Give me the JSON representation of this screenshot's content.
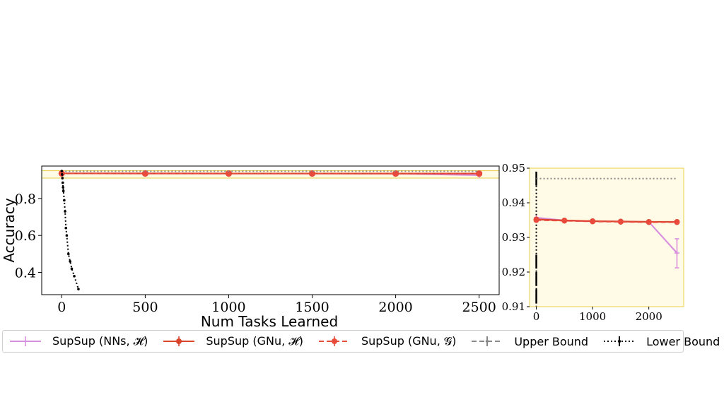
{
  "chart_data": [
    {
      "type": "line",
      "panel": "main",
      "xlabel": "Num Tasks Learned",
      "ylabel": "Accuracy",
      "xlim": [
        -120,
        2620
      ],
      "ylim": [
        0.28,
        0.975
      ],
      "xticks": [
        0,
        500,
        1000,
        1500,
        2000,
        2500
      ],
      "yticks": [
        0.4,
        0.6,
        0.8
      ],
      "ytick_labels": [
        "0.4",
        "0.6",
        "0.8"
      ],
      "highlight_band": [
        0.91,
        0.95
      ],
      "series": [
        {
          "name": "SupSup (NNs, $\\mathcal{H}$)",
          "color": "#d98fe0",
          "style": "solid",
          "marker": "plus",
          "x": [
            0,
            500,
            1000,
            1500,
            2000,
            2500
          ],
          "y": [
            0.9357,
            0.9349,
            0.9347,
            0.9346,
            0.9345,
            0.9255
          ]
        },
        {
          "name": "SupSup (GNu, $\\mathcal{H}$)",
          "color": "#d9442b",
          "style": "solid",
          "marker": "circle",
          "x": [
            0,
            500,
            1000,
            1500,
            2000,
            2500
          ],
          "y": [
            0.9352,
            0.9349,
            0.9347,
            0.9346,
            0.9345,
            0.9345
          ]
        },
        {
          "name": "SupSup (GNu, $\\mathcal{G}$)",
          "color": "#e84a3c",
          "style": "dashed",
          "marker": "circle",
          "x": [
            0,
            500,
            1000,
            1500,
            2000,
            2500
          ],
          "y": [
            0.935,
            0.9348,
            0.9346,
            0.9345,
            0.9344,
            0.9344
          ]
        },
        {
          "name": "Upper Bound",
          "color": "#888888",
          "style": "dotted",
          "marker": "none",
          "x": [
            0,
            2500
          ],
          "y": [
            0.947,
            0.947
          ]
        },
        {
          "name": "Lower Bound",
          "color": "#000000",
          "style": "dotted",
          "marker": "dot",
          "x": [
            0,
            2,
            4,
            6,
            8,
            10,
            15,
            20,
            25,
            30,
            40,
            50,
            60,
            75,
            100
          ],
          "y": [
            0.948,
            0.93,
            0.91,
            0.885,
            0.86,
            0.84,
            0.79,
            0.73,
            0.64,
            0.6,
            0.5,
            0.46,
            0.42,
            0.38,
            0.31
          ]
        }
      ]
    },
    {
      "type": "line",
      "panel": "zoom",
      "xlim": [
        -120,
        2620
      ],
      "ylim": [
        0.91,
        0.95
      ],
      "xticks": [
        0,
        1000,
        2000
      ],
      "yticks": [
        0.91,
        0.92,
        0.93,
        0.94,
        0.95
      ],
      "ytick_labels": [
        "0.91",
        "0.92",
        "0.93",
        "0.94",
        "0.95"
      ],
      "series_ref": "main",
      "errorbars": [
        {
          "series": "SupSup (NNs, $\\mathcal{H}$)",
          "x": 2500,
          "low": 0.9212,
          "high": 0.9296
        }
      ]
    }
  ],
  "legend": {
    "placement": "bottom",
    "entries": [
      {
        "label": "SupSup (NNs, 𝓗)",
        "color": "#d98fe0",
        "style": "solid",
        "marker": "plus"
      },
      {
        "label": "SupSup (GNu, 𝓗)",
        "color": "#d9442b",
        "style": "solid",
        "marker": "circle"
      },
      {
        "label": "SupSup (GNu, 𝓖)",
        "color": "#e84a3c",
        "style": "dashed",
        "marker": "circle"
      },
      {
        "label": "Upper Bound",
        "color": "#888888",
        "style": "dashed",
        "marker": "errorbar"
      },
      {
        "label": "Lower Bound",
        "color": "#000000",
        "style": "dotted",
        "marker": "errorbar"
      }
    ]
  },
  "colors": {
    "band_fill": "#fffbe6",
    "band_stroke": "#e8cf4a"
  }
}
